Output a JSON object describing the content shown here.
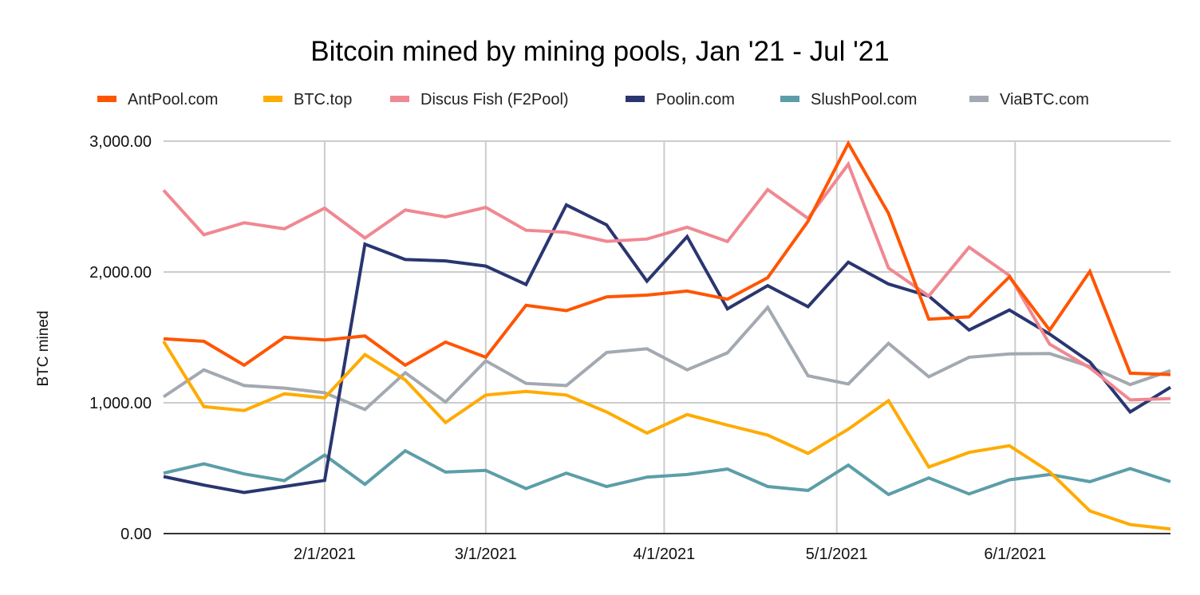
{
  "chart_data": {
    "type": "line",
    "title": "Bitcoin mined by mining pools, Jan '21 - Jul '21",
    "xlabel": "",
    "ylabel": "BTC mined",
    "ylim": [
      0,
      3000
    ],
    "yticks": [
      0,
      1000,
      2000,
      3000
    ],
    "ytick_labels": [
      "0.00",
      "1,000.00",
      "2,000.00",
      "3,000.00"
    ],
    "xticks": [
      "2021-02-01",
      "2021-03-01",
      "2021-04-01",
      "2021-05-01",
      "2021-06-01"
    ],
    "xtick_labels": [
      "2/1/2021",
      "3/1/2021",
      "4/1/2021",
      "5/1/2021",
      "6/1/2021"
    ],
    "xlim": [
      "2021-01-04",
      "2021-06-28"
    ],
    "grid": true,
    "legend_position": "top",
    "x": [
      "2021-01-04",
      "2021-01-11",
      "2021-01-18",
      "2021-01-25",
      "2021-02-01",
      "2021-02-08",
      "2021-02-15",
      "2021-02-22",
      "2021-03-01",
      "2021-03-08",
      "2021-03-15",
      "2021-03-22",
      "2021-03-29",
      "2021-04-05",
      "2021-04-12",
      "2021-04-19",
      "2021-04-26",
      "2021-05-03",
      "2021-05-10",
      "2021-05-17",
      "2021-05-24",
      "2021-05-31",
      "2021-06-07",
      "2021-06-14",
      "2021-06-21",
      "2021-06-28"
    ],
    "series": [
      {
        "name": "AntPool.com",
        "color": "#ff5500",
        "values": [
          1489,
          1470,
          1287,
          1501,
          1480,
          1511,
          1287,
          1464,
          1348,
          1745,
          1704,
          1810,
          1823,
          1854,
          1792,
          1957,
          2387,
          2983,
          2448,
          1639,
          1657,
          1963,
          1556,
          2004,
          1226,
          1216
        ]
      },
      {
        "name": "BTC.top",
        "color": "#ffab00",
        "values": [
          1470,
          971,
          941,
          1069,
          1038,
          1368,
          1175,
          849,
          1059,
          1087,
          1059,
          930,
          768,
          910,
          829,
          753,
          613,
          798,
          1016,
          509,
          621,
          672,
          472,
          173,
          69,
          35
        ]
      },
      {
        "name": "Discus Fish (F2Pool)",
        "color": "#f08891",
        "values": [
          2625,
          2285,
          2376,
          2330,
          2488,
          2260,
          2474,
          2421,
          2494,
          2319,
          2303,
          2234,
          2252,
          2342,
          2233,
          2630,
          2410,
          2824,
          2030,
          1816,
          2189,
          1973,
          1448,
          1267,
          1022,
          1032
        ]
      },
      {
        "name": "Poolin.com",
        "color": "#2a3670",
        "values": [
          436,
          371,
          314,
          360,
          407,
          2213,
          2095,
          2085,
          2045,
          1904,
          2513,
          2360,
          1929,
          2270,
          1718,
          1895,
          1735,
          2075,
          1908,
          1816,
          1556,
          1709,
          1525,
          1312,
          930,
          1118
        ]
      },
      {
        "name": "SlushPool.com",
        "color": "#5c9ea8",
        "values": [
          462,
          533,
          456,
          405,
          600,
          377,
          633,
          470,
          483,
          344,
          462,
          360,
          432,
          452,
          493,
          360,
          330,
          523,
          299,
          425,
          303,
          411,
          452,
          397,
          497,
          397
        ]
      },
      {
        "name": "ViaBTC.com",
        "color": "#a3a9b1",
        "values": [
          1046,
          1252,
          1132,
          1112,
          1077,
          949,
          1230,
          1006,
          1321,
          1148,
          1132,
          1385,
          1413,
          1252,
          1382,
          1729,
          1207,
          1144,
          1454,
          1199,
          1348,
          1374,
          1376,
          1277,
          1139,
          1246
        ]
      }
    ]
  }
}
